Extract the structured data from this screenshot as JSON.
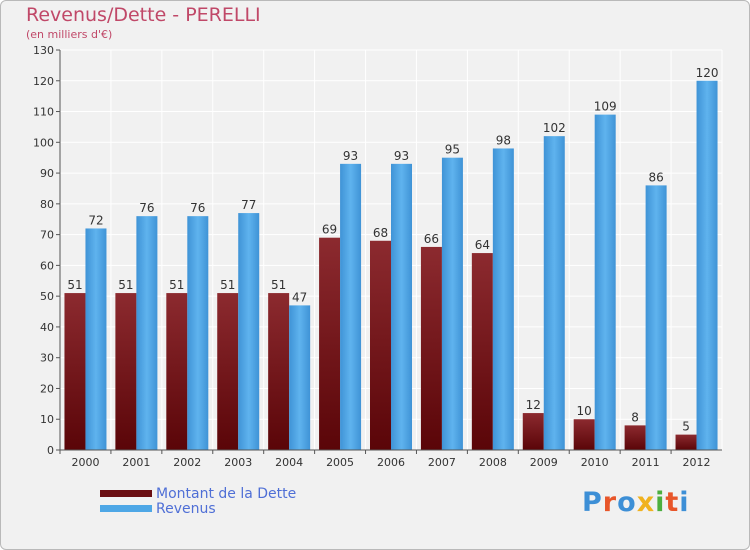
{
  "header": {
    "title": "Revenus/Dette - PERELLI",
    "subtitle": "(en milliers d'€)"
  },
  "colors": {
    "dette": "#7a1a1e",
    "revenus": "#4ea7e6",
    "grid": "#ffffff",
    "axis_text": "#333333"
  },
  "legend": {
    "items": [
      {
        "label": "Montant de la Dette",
        "color": "#6b0f12"
      },
      {
        "label": "Revenus",
        "color": "#4ea7e6"
      }
    ]
  },
  "logo": {
    "text": "Proxiti"
  },
  "chart_data": {
    "type": "bar",
    "title": "Revenus/Dette - PERELLI",
    "subtitle": "(en milliers d'€)",
    "categories": [
      "2000",
      "2001",
      "2002",
      "2003",
      "2004",
      "2005",
      "2006",
      "2007",
      "2008",
      "2009",
      "2010",
      "2011",
      "2012"
    ],
    "series": [
      {
        "name": "Montant de la Dette",
        "values": [
          51,
          51,
          51,
          51,
          51,
          69,
          68,
          66,
          64,
          12,
          10,
          8,
          5
        ]
      },
      {
        "name": "Revenus",
        "values": [
          72,
          76,
          76,
          77,
          47,
          93,
          93,
          95,
          98,
          102,
          109,
          86,
          120
        ]
      }
    ],
    "ylim": [
      0,
      130
    ],
    "yticks": [
      0,
      10,
      20,
      30,
      40,
      50,
      60,
      70,
      80,
      90,
      100,
      110,
      120,
      130
    ],
    "grid": true,
    "legend_position": "bottom-left"
  }
}
